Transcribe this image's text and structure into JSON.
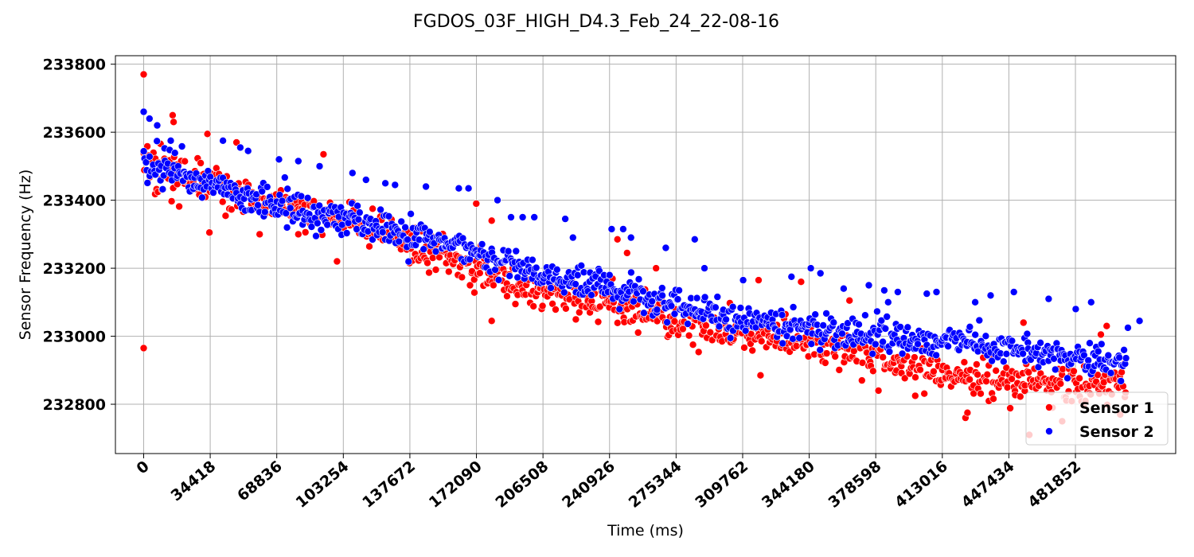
{
  "chart_data": {
    "type": "scatter",
    "title": "FGDOS_03F_HIGH_D4.3_Feb_24_22-08-16",
    "xlabel": "Time (ms)",
    "ylabel": "Sensor Frequency (Hz)",
    "xlim": [
      -14600,
      533700
    ],
    "ylim": [
      232655,
      233825
    ],
    "xticks": [
      0,
      34418,
      68836,
      103254,
      137672,
      172090,
      206508,
      240926,
      275344,
      309762,
      344180,
      378598,
      413016,
      447434,
      481852
    ],
    "yticks": [
      232800,
      233000,
      233200,
      233400,
      233600,
      233800
    ],
    "grid": true,
    "legend_position": "bottom-right",
    "series": [
      {
        "name": "Sensor 1",
        "color": "#ff0000",
        "anchors": [
          [
            0,
            233540
          ],
          [
            5000,
            233505
          ],
          [
            30000,
            233455
          ],
          [
            60000,
            233395
          ],
          [
            100000,
            233345
          ],
          [
            137672,
            233275
          ],
          [
            172090,
            233200
          ],
          [
            206508,
            233130
          ],
          [
            240926,
            233090
          ],
          [
            275344,
            233045
          ],
          [
            309762,
            233005
          ],
          [
            344180,
            232985
          ],
          [
            378598,
            232940
          ],
          [
            413016,
            232885
          ],
          [
            447434,
            232870
          ],
          [
            481852,
            232860
          ],
          [
            508000,
            232855
          ]
        ],
        "spread": 28,
        "count": 900,
        "outliers": [
          [
            0,
            233770
          ],
          [
            0,
            232965
          ],
          [
            15000,
            233650
          ],
          [
            15500,
            233630
          ],
          [
            33000,
            233595
          ],
          [
            48000,
            233570
          ],
          [
            60000,
            233300
          ],
          [
            34000,
            233305
          ],
          [
            80000,
            233300
          ],
          [
            93000,
            233535
          ],
          [
            100000,
            233220
          ],
          [
            172000,
            233390
          ],
          [
            180000,
            233340
          ],
          [
            180000,
            233045
          ],
          [
            245000,
            233285
          ],
          [
            250000,
            233245
          ],
          [
            265000,
            233200
          ],
          [
            318000,
            233165
          ],
          [
            319000,
            232885
          ],
          [
            340000,
            233160
          ],
          [
            345000,
            233000
          ],
          [
            365000,
            233105
          ],
          [
            380000,
            232840
          ],
          [
            399000,
            232825
          ],
          [
            425000,
            232760
          ],
          [
            426000,
            232775
          ],
          [
            455000,
            233040
          ],
          [
            458000,
            232710
          ],
          [
            470000,
            232790
          ],
          [
            475000,
            232750
          ],
          [
            487000,
            232810
          ],
          [
            495000,
            233005
          ],
          [
            498000,
            233030
          ],
          [
            505000,
            232770
          ]
        ]
      },
      {
        "name": "Sensor 2",
        "color": "#0000ff",
        "anchors": [
          [
            0,
            233520
          ],
          [
            5000,
            233500
          ],
          [
            30000,
            233450
          ],
          [
            60000,
            233390
          ],
          [
            100000,
            233350
          ],
          [
            137672,
            233300
          ],
          [
            172090,
            233250
          ],
          [
            206508,
            233175
          ],
          [
            240926,
            233145
          ],
          [
            275344,
            233090
          ],
          [
            309762,
            233045
          ],
          [
            344180,
            233020
          ],
          [
            378598,
            232995
          ],
          [
            413016,
            232985
          ],
          [
            447434,
            232970
          ],
          [
            481852,
            232935
          ],
          [
            508000,
            232915
          ]
        ],
        "spread": 24,
        "count": 900,
        "outliers": [
          [
            0,
            233660
          ],
          [
            3000,
            233640
          ],
          [
            7000,
            233620
          ],
          [
            14000,
            233575
          ],
          [
            41000,
            233575
          ],
          [
            50000,
            233555
          ],
          [
            54000,
            233545
          ],
          [
            70000,
            233520
          ],
          [
            80000,
            233515
          ],
          [
            91000,
            233500
          ],
          [
            108000,
            233480
          ],
          [
            115000,
            233460
          ],
          [
            125000,
            233450
          ],
          [
            130000,
            233445
          ],
          [
            146000,
            233440
          ],
          [
            163000,
            233435
          ],
          [
            168000,
            233435
          ],
          [
            183000,
            233400
          ],
          [
            190000,
            233350
          ],
          [
            196000,
            233350
          ],
          [
            202000,
            233350
          ],
          [
            218000,
            233345
          ],
          [
            222000,
            233290
          ],
          [
            242000,
            233315
          ],
          [
            248000,
            233315
          ],
          [
            252000,
            233290
          ],
          [
            270000,
            233260
          ],
          [
            285000,
            233285
          ],
          [
            290000,
            233200
          ],
          [
            310000,
            233165
          ],
          [
            335000,
            233175
          ],
          [
            345000,
            233200
          ],
          [
            350000,
            233185
          ],
          [
            362000,
            233140
          ],
          [
            375000,
            233150
          ],
          [
            383000,
            233135
          ],
          [
            385000,
            233100
          ],
          [
            390000,
            233130
          ],
          [
            405000,
            233125
          ],
          [
            410000,
            233130
          ],
          [
            430000,
            233100
          ],
          [
            438000,
            233120
          ],
          [
            450000,
            233130
          ],
          [
            468000,
            233110
          ],
          [
            482000,
            233080
          ],
          [
            490000,
            233100
          ],
          [
            509000,
            233025
          ],
          [
            515000,
            233045
          ]
        ]
      }
    ]
  }
}
